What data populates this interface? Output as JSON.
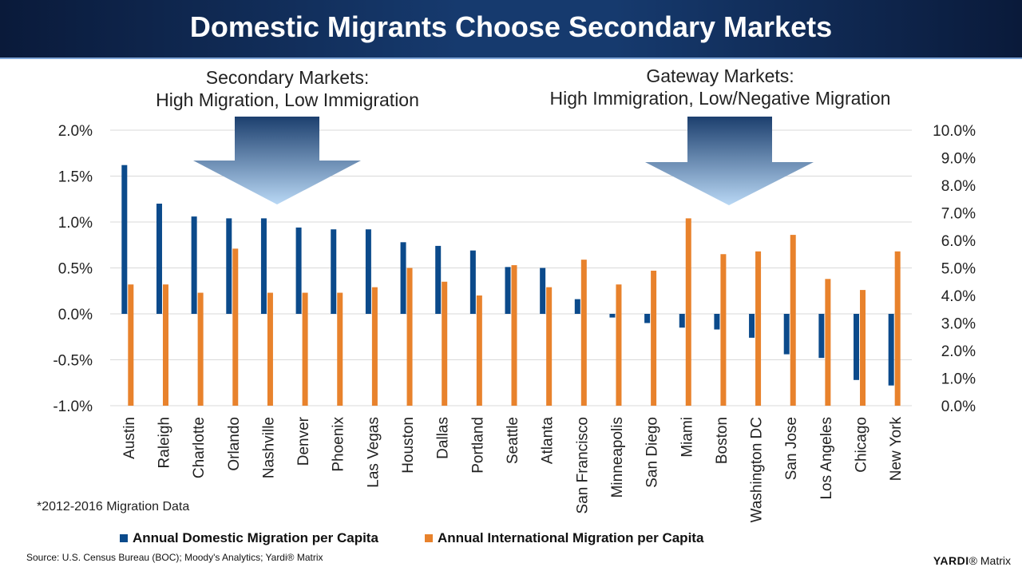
{
  "title": "Domestic Migrants Choose Secondary Markets",
  "callouts": {
    "left": {
      "line1": "Secondary Markets:",
      "line2": "High Migration, Low Immigration"
    },
    "right": {
      "line1": "Gateway Markets:",
      "line2": "High Immigration, Low/Negative Migration"
    }
  },
  "note": "*2012-2016 Migration Data",
  "source": "Source: U.S. Census Bureau (BOC); Moody's Analytics; Yardi® Matrix",
  "logo": {
    "brand": "YARDI",
    "mark": "®",
    "product": "Matrix"
  },
  "colors": {
    "domestic": "#0b4a8b",
    "international": "#e8822c",
    "grid": "#d9d9d9",
    "arrow_top": "#1c3f6e",
    "arrow_bottom": "#b9d8f5"
  },
  "chart_data": {
    "type": "bar",
    "categories": [
      "Austin",
      "Raleigh",
      "Charlotte",
      "Orlando",
      "Nashville",
      "Denver",
      "Phoenix",
      "Las Vegas",
      "Houston",
      "Dallas",
      "Portland",
      "Seattle",
      "Atlanta",
      "San Francisco",
      "Minneapolis",
      "San Diego",
      "Miami",
      "Boston",
      "Washington DC",
      "San Jose",
      "Los Angeles",
      "Chicago",
      "New York"
    ],
    "series": [
      {
        "name": "Annual Domestic Migration per Capita",
        "axis": "left",
        "color": "#0b4a8b",
        "values": [
          1.62,
          1.2,
          1.06,
          1.04,
          1.04,
          0.94,
          0.92,
          0.92,
          0.78,
          0.74,
          0.69,
          0.51,
          0.5,
          0.16,
          -0.04,
          -0.1,
          -0.15,
          -0.17,
          -0.26,
          -0.44,
          -0.48,
          -0.72,
          -0.78
        ]
      },
      {
        "name": "Annual International Migration per Capita",
        "axis": "right",
        "color": "#e8822c",
        "values": [
          4.4,
          4.4,
          4.1,
          5.7,
          4.1,
          4.1,
          4.1,
          4.3,
          5.0,
          4.5,
          4.0,
          5.1,
          4.3,
          5.3,
          4.4,
          4.9,
          6.8,
          5.5,
          5.6,
          6.2,
          4.6,
          4.2,
          5.6
        ]
      }
    ],
    "left_axis": {
      "min": -1.0,
      "max": 2.0,
      "ticks": [
        "2.0%",
        "1.5%",
        "1.0%",
        "0.5%",
        "0.0%",
        "-0.5%",
        "-1.0%"
      ]
    },
    "right_axis": {
      "min": 0.0,
      "max": 10.0,
      "ticks": [
        "10.0%",
        "9.0%",
        "8.0%",
        "7.0%",
        "6.0%",
        "5.0%",
        "4.0%",
        "3.0%",
        "2.0%",
        "1.0%",
        "0.0%"
      ]
    },
    "grid": true,
    "legend_position": "bottom"
  }
}
